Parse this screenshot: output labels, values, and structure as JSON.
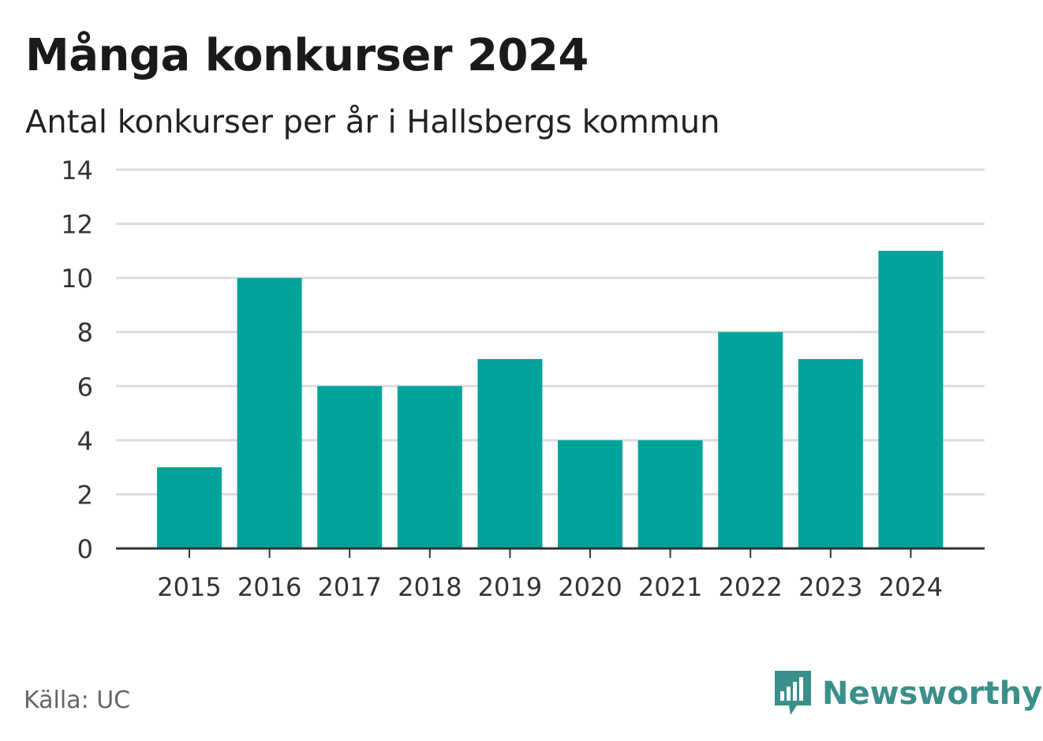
{
  "title": "Många konkurser 2024",
  "subtitle": "Antal konkurser per år i Hallsbergs kommun",
  "source": "Källa: UC",
  "logo": {
    "text": "Newsworthy",
    "icon": "newsworthy-bar-chart-icon"
  },
  "colors": {
    "bar": "#00a39a",
    "logo": "#3b8f8a",
    "grid": "#dddddd",
    "axis": "#333333"
  },
  "chart_data": {
    "type": "bar",
    "categories": [
      "2015",
      "2016",
      "2017",
      "2018",
      "2019",
      "2020",
      "2021",
      "2022",
      "2023",
      "2024"
    ],
    "values": [
      3,
      10,
      6,
      6,
      7,
      4,
      4,
      8,
      7,
      11
    ],
    "ylim": [
      0,
      14
    ],
    "yticks": [
      0,
      2,
      4,
      6,
      8,
      10,
      12,
      14
    ],
    "grid": true,
    "legend": "none"
  }
}
